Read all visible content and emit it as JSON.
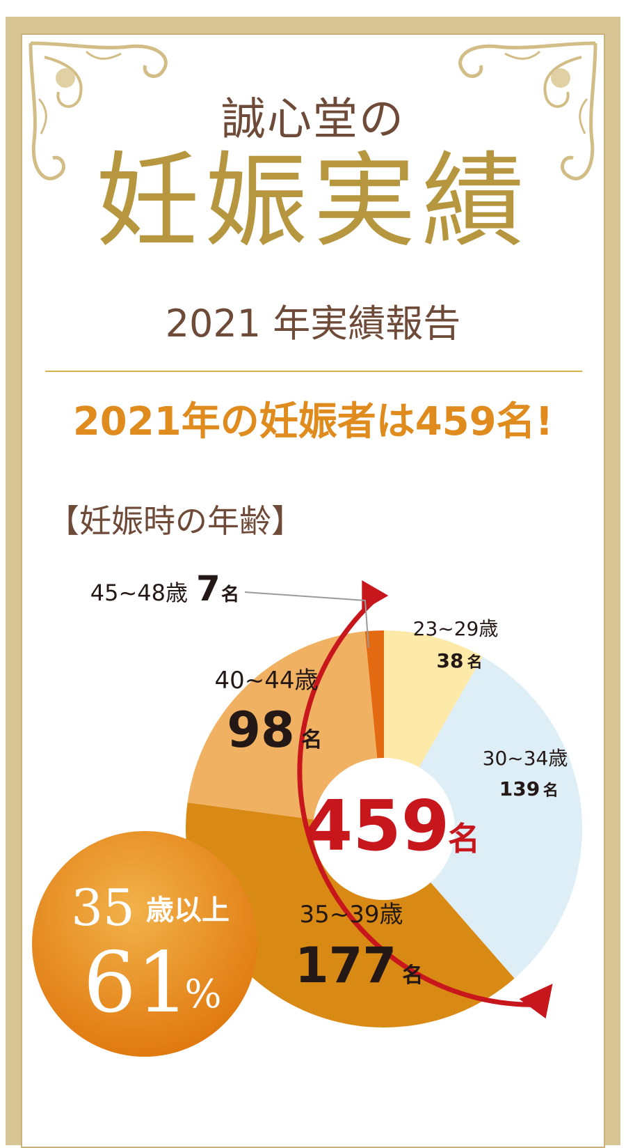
{
  "header": {
    "shop_title": "誠心堂の",
    "main_title": "妊娠実績",
    "report_title": "2021 年実績報告",
    "headline": "2021年の妊娠者は459名!"
  },
  "section_title": "【妊娠時の年齢】",
  "chart_data": {
    "type": "pie",
    "title": "【妊娠時の年齢】",
    "total_value": "459",
    "total_unit": "名",
    "slices": [
      {
        "label": "23~29歳",
        "value": 38,
        "value_text": "38",
        "unit": "名",
        "color": "#fdeaa8"
      },
      {
        "label": "30~34歳",
        "value": 139,
        "value_text": "139",
        "unit": "名",
        "color": "#ddeef7"
      },
      {
        "label": "35~39歳",
        "value": 177,
        "value_text": "177",
        "unit": "名",
        "color": "#d98a14"
      },
      {
        "label": "40~44歳",
        "value": 98,
        "value_text": "98",
        "unit": "名",
        "color": "#f0b262"
      },
      {
        "label": "45~48歳",
        "value": 7,
        "value_text": "7",
        "unit": "名",
        "color": "#e36a10"
      }
    ],
    "badge": {
      "line1_num": "35",
      "line1_text": "歳以上",
      "line2_num": "61",
      "line2_unit": "%"
    }
  },
  "colors": {
    "gold": "#b6973f",
    "brown": "#6e4a38",
    "orange": "#e08b1d",
    "red": "#c8161d"
  }
}
